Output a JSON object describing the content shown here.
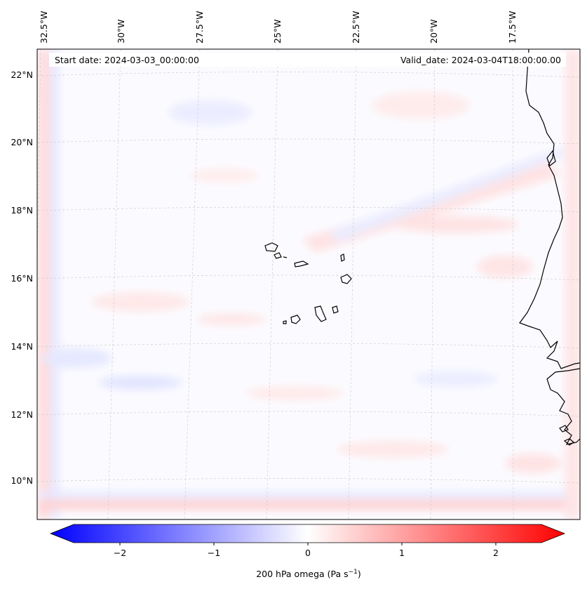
{
  "header": {
    "start_date": "Start date: 2024-03-03_00:00:00",
    "valid_date": "Valid_date: 2024-03-04T18:00:00.00"
  },
  "map": {
    "lon_labels": [
      "32.5°W",
      "30°W",
      "27.5°W",
      "25°W",
      "22.5°W",
      "20°W",
      "17.5°W"
    ],
    "lat_labels": [
      "22°N",
      "20°N",
      "18°N",
      "16°N",
      "14°N",
      "12°N",
      "10°N"
    ]
  },
  "colorbar": {
    "ticks": [
      "−2",
      "−1",
      "0",
      "1",
      "2"
    ],
    "label": "200 hPa omega (Pa s",
    "label_exponent": "−1",
    "label_close": ")",
    "colors": {
      "negative": "#0000ff",
      "zero": "#ffffff",
      "positive": "#ff0000"
    }
  }
}
